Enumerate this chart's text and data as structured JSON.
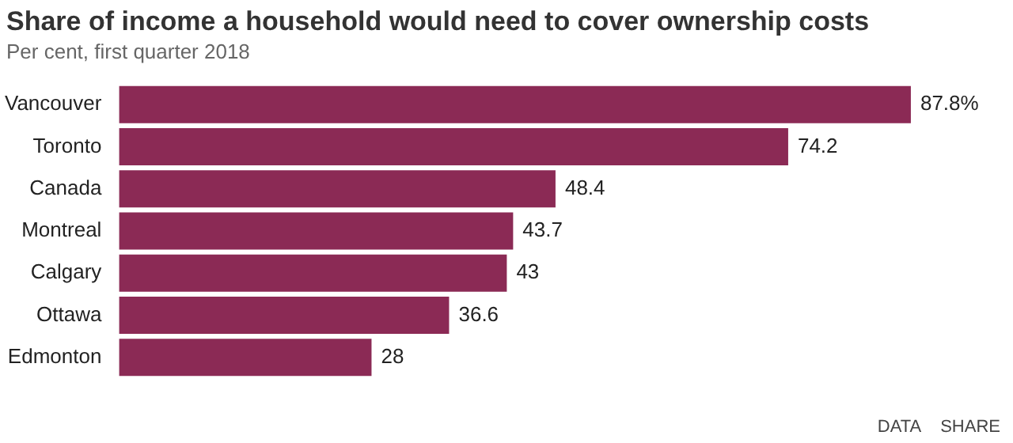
{
  "chart_data": {
    "type": "bar",
    "orientation": "horizontal",
    "title": "Share of income a household would need to cover ownership costs",
    "subtitle": "Per cent, first quarter 2018",
    "categories": [
      "Vancouver",
      "Toronto",
      "Canada",
      "Montreal",
      "Calgary",
      "Ottawa",
      "Edmonton"
    ],
    "values": [
      87.8,
      74.2,
      48.4,
      43.7,
      43,
      36.6,
      28
    ],
    "value_labels": [
      "87.8%",
      "74.2",
      "48.4",
      "43.7",
      "43",
      "36.6",
      "28"
    ],
    "color": "#8b2a55",
    "grid": false,
    "legend": false,
    "annotations": [
      "DATA",
      "SHARE"
    ]
  }
}
